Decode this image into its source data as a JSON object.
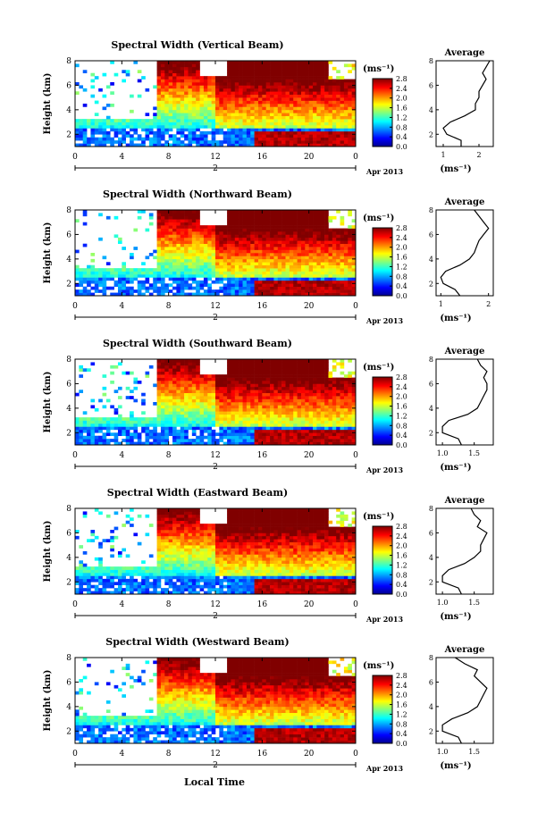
{
  "figure": {
    "xlabel": "Local Time",
    "date_label": "2",
    "month_label": "Apr 2013",
    "colorbar_unit": "(ms⁻¹)",
    "avg_title": "Average",
    "avg_xlabel": "(ms⁻¹)",
    "ylabel": "Height (km)"
  },
  "chart_data": [
    {
      "type": "heatmap",
      "title": "Spectral Width (Vertical Beam)",
      "x_ticks": [
        "0",
        "4",
        "8",
        "12",
        "16",
        "20",
        "0"
      ],
      "xlim": [
        0,
        24
      ],
      "y_ticks": [
        "2",
        "4",
        "6",
        "8"
      ],
      "ylim": [
        1,
        8
      ],
      "colorbar_ticks": [
        "2.8",
        "2.4",
        "2.0",
        "1.6",
        "1.2",
        "0.8",
        "0.4",
        "0.0"
      ],
      "colorbar_range": [
        0.0,
        2.8
      ],
      "average_profile": {
        "x_ticks": [
          "1",
          "2"
        ],
        "xlim": [
          0.8,
          2.4
        ],
        "height_km": [
          1.0,
          1.5,
          2.0,
          2.5,
          3.0,
          3.5,
          4.0,
          4.5,
          5.0,
          5.5,
          6.0,
          6.5,
          7.0,
          7.5,
          8.0
        ],
        "width_ms": [
          1.5,
          1.5,
          1.1,
          1.0,
          1.2,
          1.6,
          1.9,
          1.9,
          2.0,
          2.0,
          2.1,
          2.2,
          2.1,
          2.2,
          2.3
        ]
      }
    },
    {
      "type": "heatmap",
      "title": "Spectral Width (Northward Beam)",
      "x_ticks": [
        "0",
        "4",
        "8",
        "12",
        "16",
        "20",
        "0"
      ],
      "xlim": [
        0,
        24
      ],
      "y_ticks": [
        "2",
        "4",
        "6",
        "8"
      ],
      "ylim": [
        1,
        8
      ],
      "colorbar_ticks": [
        "2.8",
        "2.4",
        "2.0",
        "1.6",
        "1.2",
        "0.8",
        "0.4",
        "0.0"
      ],
      "colorbar_range": [
        0.0,
        2.8
      ],
      "average_profile": {
        "x_ticks": [
          "1",
          "2"
        ],
        "xlim": [
          0.9,
          2.1
        ],
        "height_km": [
          1.0,
          1.5,
          2.0,
          2.5,
          3.0,
          3.5,
          4.0,
          4.5,
          5.0,
          5.5,
          6.0,
          6.5,
          7.0,
          7.5,
          8.0
        ],
        "width_ms": [
          1.4,
          1.3,
          1.05,
          1.0,
          1.1,
          1.4,
          1.6,
          1.7,
          1.75,
          1.8,
          1.9,
          2.0,
          1.9,
          1.8,
          1.7
        ]
      }
    },
    {
      "type": "heatmap",
      "title": "Spectral Width (Southward Beam)",
      "x_ticks": [
        "0",
        "4",
        "8",
        "12",
        "16",
        "20",
        "0"
      ],
      "xlim": [
        0,
        24
      ],
      "y_ticks": [
        "2",
        "4",
        "6",
        "8"
      ],
      "ylim": [
        1,
        8
      ],
      "colorbar_ticks": [
        "2.8",
        "2.4",
        "2.0",
        "1.6",
        "1.2",
        "0.8",
        "0.4",
        "0.0"
      ],
      "colorbar_range": [
        0.0,
        2.8
      ],
      "average_profile": {
        "x_ticks": [
          "1.0",
          "1.5"
        ],
        "xlim": [
          0.9,
          1.8
        ],
        "height_km": [
          1.0,
          1.5,
          2.0,
          2.5,
          3.0,
          3.5,
          4.0,
          4.5,
          5.0,
          5.5,
          6.0,
          6.5,
          7.0,
          7.5,
          8.0
        ],
        "width_ms": [
          1.3,
          1.25,
          1.0,
          1.0,
          1.1,
          1.4,
          1.55,
          1.6,
          1.65,
          1.7,
          1.7,
          1.65,
          1.7,
          1.6,
          1.55
        ]
      }
    },
    {
      "type": "heatmap",
      "title": "Spectral Width (Eastward Beam)",
      "x_ticks": [
        "0",
        "4",
        "8",
        "12",
        "16",
        "20",
        "0"
      ],
      "xlim": [
        0,
        24
      ],
      "y_ticks": [
        "2",
        "4",
        "6",
        "8"
      ],
      "ylim": [
        1,
        8
      ],
      "colorbar_ticks": [
        "2.8",
        "2.4",
        "2.0",
        "1.6",
        "1.2",
        "0.8",
        "0.4",
        "0.0"
      ],
      "colorbar_range": [
        0.0,
        2.8
      ],
      "average_profile": {
        "x_ticks": [
          "1.0",
          "1.5"
        ],
        "xlim": [
          0.9,
          1.8
        ],
        "height_km": [
          1.0,
          1.5,
          2.0,
          2.5,
          3.0,
          3.5,
          4.0,
          4.5,
          5.0,
          5.5,
          6.0,
          6.5,
          7.0,
          7.5,
          8.0
        ],
        "width_ms": [
          1.3,
          1.25,
          1.0,
          1.0,
          1.1,
          1.35,
          1.5,
          1.6,
          1.6,
          1.65,
          1.7,
          1.55,
          1.6,
          1.5,
          1.45
        ]
      }
    },
    {
      "type": "heatmap",
      "title": "Spectral Width (Westward Beam)",
      "x_ticks": [
        "0",
        "4",
        "8",
        "12",
        "16",
        "20",
        "0"
      ],
      "xlim": [
        0,
        24
      ],
      "y_ticks": [
        "2",
        "4",
        "6",
        "8"
      ],
      "ylim": [
        1,
        8
      ],
      "colorbar_ticks": [
        "2.8",
        "2.4",
        "2.0",
        "1.6",
        "1.2",
        "0.8",
        "0.4",
        "0.0"
      ],
      "colorbar_range": [
        0.0,
        2.8
      ],
      "average_profile": {
        "x_ticks": [
          "1.0",
          "1.5"
        ],
        "xlim": [
          0.9,
          1.8
        ],
        "height_km": [
          1.0,
          1.5,
          2.0,
          2.5,
          3.0,
          3.5,
          4.0,
          4.5,
          5.0,
          5.5,
          6.0,
          6.5,
          7.0,
          7.5,
          8.0
        ],
        "width_ms": [
          1.3,
          1.25,
          1.0,
          1.0,
          1.15,
          1.4,
          1.55,
          1.6,
          1.65,
          1.7,
          1.6,
          1.5,
          1.55,
          1.35,
          1.2
        ]
      }
    }
  ]
}
